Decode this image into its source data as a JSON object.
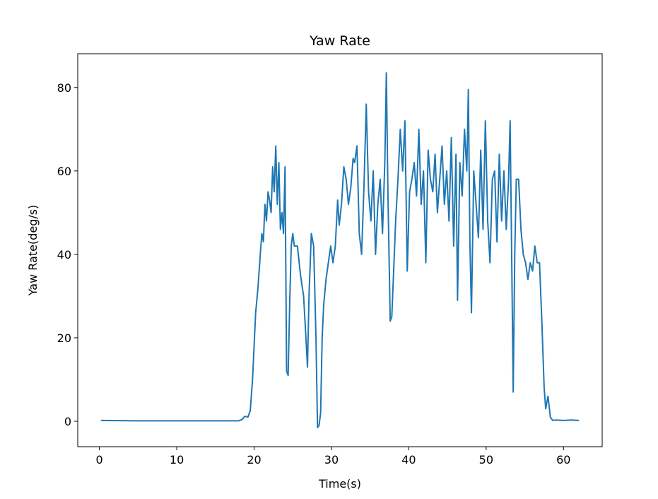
{
  "chart_data": {
    "type": "line",
    "title": "Yaw Rate",
    "x_label": "Time(s)",
    "y_label": "Yaw Rate(deg/s)",
    "x": [
      0.2,
      5,
      10,
      15,
      18,
      18.5,
      18.8,
      19.2,
      19.5,
      19.8,
      20,
      20.2,
      20.5,
      20.8,
      21,
      21.2,
      21.4,
      21.6,
      21.8,
      22,
      22.2,
      22.4,
      22.6,
      22.8,
      23,
      23.2,
      23.4,
      23.6,
      23.8,
      24,
      24.2,
      24.4,
      24.6,
      24.8,
      25,
      25.2,
      25.6,
      26,
      26.4,
      26.7,
      26.9,
      27.1,
      27.4,
      27.7,
      28,
      28.2,
      28.4,
      28.6,
      28.8,
      29,
      29.3,
      29.6,
      29.9,
      30.2,
      30.5,
      30.8,
      31,
      31.3,
      31.6,
      31.9,
      32.2,
      32.5,
      32.8,
      33,
      33.3,
      33.6,
      33.9,
      34.2,
      34.5,
      34.8,
      35.1,
      35.4,
      35.7,
      36,
      36.3,
      36.6,
      36.9,
      37.1,
      37.3,
      37.6,
      37.8,
      38,
      38.3,
      38.6,
      38.9,
      39.2,
      39.5,
      39.8,
      40.1,
      40.4,
      40.7,
      41,
      41.3,
      41.6,
      41.9,
      42.2,
      42.5,
      42.8,
      43.1,
      43.4,
      43.7,
      44,
      44.3,
      44.6,
      44.9,
      45.2,
      45.5,
      45.8,
      46.1,
      46.3,
      46.6,
      46.9,
      47.2,
      47.5,
      47.7,
      47.9,
      48.1,
      48.4,
      48.7,
      49,
      49.3,
      49.6,
      49.9,
      50.2,
      50.5,
      50.8,
      51.1,
      51.4,
      51.7,
      52,
      52.3,
      52.6,
      52.9,
      53.1,
      53.3,
      53.5,
      53.7,
      53.9,
      54.2,
      54.5,
      54.8,
      55.1,
      55.4,
      55.7,
      56,
      56.3,
      56.6,
      56.9,
      57.2,
      57.5,
      57.7,
      58,
      58.3,
      58.6,
      59,
      60,
      61,
      62
    ],
    "series": [
      {
        "name": "Yaw Rate",
        "color": "#1f77b4",
        "values": [
          0.2,
          0.1,
          0.1,
          0.1,
          0.1,
          0.5,
          1.2,
          1.0,
          2.5,
          10,
          18,
          26,
          32,
          40,
          45,
          43,
          52,
          48,
          55,
          53,
          50,
          61,
          55,
          66,
          52,
          62,
          46,
          50,
          45,
          61,
          12,
          11,
          28,
          42,
          45,
          42,
          42,
          35,
          30,
          20,
          13,
          30,
          45,
          42,
          20,
          -1.5,
          -1,
          2,
          20,
          28,
          34,
          38,
          42,
          38,
          42,
          53,
          47,
          52,
          61,
          58,
          52,
          56,
          63,
          62,
          66,
          45,
          40,
          56,
          76,
          55,
          48,
          60,
          40,
          52,
          58,
          45,
          62,
          83.5,
          55,
          24,
          25,
          34,
          48,
          58,
          70,
          60,
          72,
          36,
          55,
          58,
          62,
          54,
          70,
          52,
          60,
          38,
          65,
          58,
          55,
          64,
          50,
          58,
          66,
          52,
          60,
          48,
          68,
          42,
          64,
          29,
          62,
          54,
          70,
          60,
          79.5,
          43,
          26,
          60,
          52,
          44,
          65,
          46,
          72,
          48,
          38,
          58,
          60,
          43,
          64,
          48,
          60,
          46,
          58,
          72,
          40,
          7,
          40,
          58,
          58,
          46,
          40,
          38,
          34,
          38,
          36,
          42,
          38,
          38,
          24,
          8,
          3,
          6,
          1,
          0.2,
          0.3,
          0.2,
          0.3,
          0.2
        ]
      }
    ],
    "xlim": [
      -2.8,
      65.0
    ],
    "ylim": [
      -6.1,
      88.1
    ],
    "xticks": [
      0,
      10,
      20,
      30,
      40,
      50,
      60
    ],
    "yticks": [
      0,
      20,
      40,
      60,
      80
    ],
    "grid": false
  }
}
